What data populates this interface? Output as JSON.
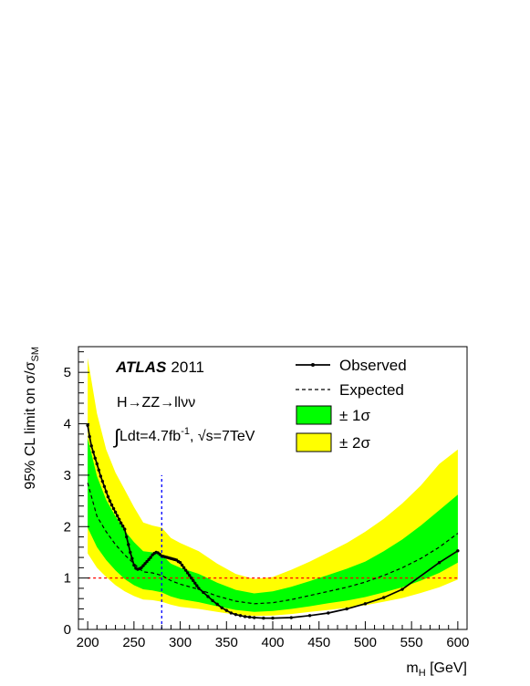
{
  "chart_data": {
    "type": "line",
    "title": "",
    "experiment_label": "ATLAS",
    "year_label": "2011",
    "channel_label": "H→ZZ→llνν",
    "lumi_label": "∫Ldt=4.7fb-1, √s=7TeV",
    "lumi_parts": {
      "integral": "∫",
      "lumi_text": "Ldt=4.7fb",
      "lumi_sup": "-1",
      "sep": ", ",
      "sqrt": "√",
      "energy": "s=7TeV"
    },
    "xlabel": "m_H [GeV]",
    "xlabel_parts": {
      "main": "m",
      "sub": "H",
      "rest": " [GeV]"
    },
    "ylabel": "95% CL limit on σ/σ_SM",
    "ylabel_parts": {
      "main": "95% CL limit on σ/σ",
      "sub": "SM"
    },
    "xlim": [
      190,
      610
    ],
    "ylim": [
      0,
      5.5
    ],
    "x_ticks": [
      200,
      250,
      300,
      350,
      400,
      450,
      500,
      550,
      600
    ],
    "x_tick_labels": [
      "200",
      "250",
      "300",
      "350",
      "400",
      "450",
      "500",
      "550",
      "600"
    ],
    "y_ticks": [
      0,
      1,
      2,
      3,
      4,
      5
    ],
    "y_tick_labels": [
      "0",
      "1",
      "2",
      "3",
      "4",
      "5"
    ],
    "grid": false,
    "legend_position": "top-right",
    "legend": [
      {
        "label": "Observed",
        "style": "solid-line-markers"
      },
      {
        "label": "Expected",
        "style": "dashed-line"
      },
      {
        "label": "± 1σ",
        "style": "green-box"
      },
      {
        "label": "± 2σ",
        "style": "yellow-box"
      }
    ],
    "colors": {
      "band_1sigma": "#00ff00",
      "band_2sigma": "#ffff00",
      "observed": "#000000",
      "expected": "#000000",
      "sm_line": "#ff0000",
      "vline": "#0000ff"
    },
    "reference_lines": {
      "sm_y": 1,
      "vline_x": 280,
      "vline_ymax": 3.0
    },
    "series": [
      {
        "name": "Expected",
        "x": [
          200,
          210,
          220,
          230,
          240,
          250,
          260,
          270,
          280,
          290,
          300,
          320,
          340,
          360,
          380,
          400,
          420,
          440,
          460,
          480,
          500,
          520,
          540,
          560,
          580,
          600
        ],
        "values": [
          2.85,
          2.2,
          1.9,
          1.65,
          1.45,
          1.28,
          1.12,
          1.1,
          1.05,
          0.95,
          0.88,
          0.78,
          0.65,
          0.55,
          0.5,
          0.52,
          0.58,
          0.66,
          0.74,
          0.82,
          0.92,
          1.05,
          1.2,
          1.38,
          1.6,
          1.87
        ],
        "minus1": [
          1.98,
          1.6,
          1.35,
          1.15,
          0.98,
          0.86,
          0.78,
          0.76,
          0.72,
          0.64,
          0.59,
          0.53,
          0.45,
          0.38,
          0.34,
          0.36,
          0.4,
          0.45,
          0.51,
          0.56,
          0.63,
          0.72,
          0.82,
          0.95,
          1.1,
          1.3
        ],
        "plus1": [
          3.72,
          2.98,
          2.52,
          2.2,
          1.92,
          1.7,
          1.52,
          1.5,
          1.45,
          1.28,
          1.2,
          1.08,
          0.91,
          0.77,
          0.7,
          0.74,
          0.83,
          0.94,
          1.06,
          1.18,
          1.32,
          1.52,
          1.75,
          2.02,
          2.32,
          2.62
        ],
        "minus2": [
          1.48,
          1.2,
          1.02,
          0.86,
          0.74,
          0.65,
          0.58,
          0.57,
          0.54,
          0.48,
          0.44,
          0.4,
          0.34,
          0.29,
          0.26,
          0.27,
          0.3,
          0.34,
          0.38,
          0.42,
          0.47,
          0.54,
          0.61,
          0.71,
          0.82,
          0.97
        ],
        "plus2": [
          5.28,
          4.2,
          3.5,
          3.05,
          2.72,
          2.38,
          2.08,
          2.02,
          1.98,
          1.78,
          1.68,
          1.52,
          1.28,
          1.08,
          0.98,
          1.02,
          1.16,
          1.32,
          1.5,
          1.68,
          1.9,
          2.15,
          2.45,
          2.8,
          3.22,
          3.5
        ]
      },
      {
        "name": "Observed",
        "x": [
          200,
          202,
          204,
          206,
          208,
          210,
          212,
          214,
          216,
          218,
          220,
          222,
          224,
          226,
          228,
          230,
          232,
          234,
          236,
          238,
          240,
          242,
          244,
          246,
          248,
          250,
          252,
          254,
          256,
          258,
          260,
          262,
          264,
          266,
          268,
          270,
          272,
          274,
          276,
          278,
          280,
          282,
          284,
          286,
          288,
          290,
          292,
          294,
          296,
          298,
          300,
          302,
          304,
          306,
          308,
          310,
          312,
          314,
          316,
          318,
          320,
          325,
          330,
          335,
          340,
          345,
          350,
          355,
          360,
          365,
          370,
          375,
          380,
          390,
          400,
          420,
          440,
          460,
          480,
          500,
          520,
          540,
          580,
          600
        ],
        "values": [
          3.97,
          3.75,
          3.57,
          3.45,
          3.33,
          3.22,
          3.1,
          2.98,
          2.88,
          2.78,
          2.68,
          2.58,
          2.5,
          2.42,
          2.35,
          2.28,
          2.21,
          2.14,
          2.07,
          2.01,
          1.95,
          1.8,
          1.65,
          1.5,
          1.38,
          1.25,
          1.19,
          1.17,
          1.18,
          1.2,
          1.24,
          1.28,
          1.32,
          1.36,
          1.4,
          1.45,
          1.48,
          1.5,
          1.49,
          1.46,
          1.43,
          1.42,
          1.41,
          1.4,
          1.39,
          1.38,
          1.37,
          1.36,
          1.35,
          1.32,
          1.3,
          1.25,
          1.2,
          1.15,
          1.1,
          1.05,
          1.0,
          0.95,
          0.9,
          0.85,
          0.8,
          0.72,
          0.64,
          0.56,
          0.49,
          0.42,
          0.37,
          0.32,
          0.29,
          0.27,
          0.25,
          0.24,
          0.23,
          0.22,
          0.22,
          0.23,
          0.27,
          0.32,
          0.4,
          0.5,
          0.62,
          0.78,
          1.3,
          1.53
        ]
      }
    ]
  }
}
